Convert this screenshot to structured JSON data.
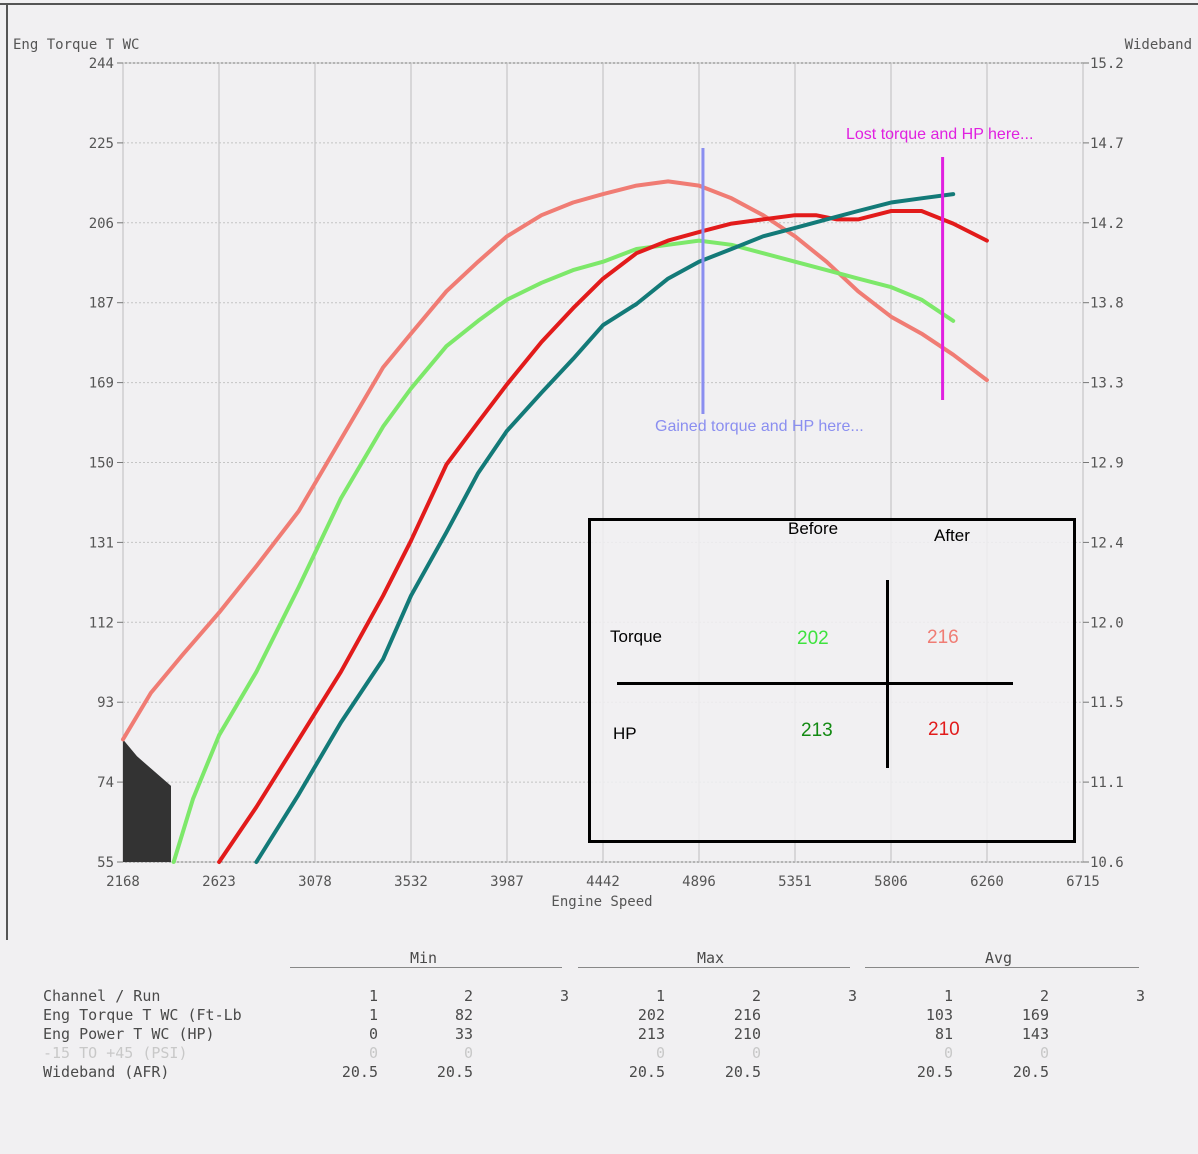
{
  "chart_data": {
    "type": "line",
    "title": "",
    "xlabel": "Engine Speed",
    "ylabel_left": "Eng Torque T WC",
    "ylabel_right": "Wideband",
    "xlim": [
      2168,
      6715
    ],
    "ylim_left": [
      55,
      244
    ],
    "ylim_right": [
      10.6,
      15.2
    ],
    "x_ticks": [
      "2168",
      "2623",
      "3078",
      "3532",
      "3987",
      "4442",
      "4896",
      "5351",
      "5806",
      "6260",
      "6715"
    ],
    "y_ticks_left": [
      "244",
      "225",
      "206",
      "187",
      "169",
      "150",
      "131",
      "112",
      "93",
      "74",
      "55"
    ],
    "y_ticks_right": [
      "15.2",
      "14.7",
      "14.2",
      "13.8",
      "13.3",
      "12.9",
      "12.4",
      "12.0",
      "11.5",
      "11.1",
      "10.6"
    ],
    "grid": true,
    "series": [
      {
        "color": "#f07c74",
        "x": [
          2168,
          2300,
          2450,
          2623,
          2800,
          3000,
          3200,
          3400,
          3532,
          3700,
          3850,
          3987,
          4150,
          4300,
          4442,
          4600,
          4750,
          4896,
          5050,
          5200,
          5351,
          5500,
          5650,
          5806,
          5950,
          6100,
          6260
        ],
        "y": [
          84,
          95,
          104,
          114,
          125,
          138,
          155,
          172,
          180,
          190,
          197,
          203,
          208,
          211,
          213,
          215,
          216,
          215,
          212,
          208,
          203,
          197,
          190,
          184,
          180,
          175,
          169
        ]
      },
      {
        "color": "#7de86a",
        "x": [
          2408,
          2500,
          2623,
          2800,
          3000,
          3200,
          3400,
          3532,
          3700,
          3850,
          3987,
          4150,
          4300,
          4442,
          4600,
          4750,
          4896,
          5050,
          5200,
          5351,
          5500,
          5650,
          5806,
          5950,
          6100
        ],
        "y": [
          55,
          70,
          85,
          100,
          120,
          141,
          158,
          167,
          177,
          183,
          188,
          192,
          195,
          197,
          200,
          201,
          202,
          201,
          199,
          197,
          195,
          193,
          191,
          188,
          183
        ]
      },
      {
        "color": "#e21b1b",
        "x": [
          2623,
          2800,
          3000,
          3200,
          3400,
          3532,
          3700,
          3850,
          3987,
          4150,
          4300,
          4442,
          4600,
          4750,
          4896,
          5050,
          5200,
          5351,
          5450,
          5550,
          5650,
          5806,
          5950,
          6100,
          6260
        ],
        "y": [
          55,
          68,
          84,
          100,
          118,
          131,
          149,
          159,
          168,
          178,
          186,
          193,
          199,
          202,
          204,
          206,
          207,
          208,
          208,
          207,
          207,
          209,
          209,
          206,
          202
        ]
      },
      {
        "color": "#137a78",
        "x": [
          2800,
          3000,
          3200,
          3400,
          3532,
          3700,
          3850,
          3987,
          4150,
          4300,
          4442,
          4600,
          4750,
          4896,
          5050,
          5200,
          5351,
          5500,
          5650,
          5806,
          5950,
          6100
        ],
        "y": [
          55,
          71,
          88,
          103,
          118,
          133,
          147,
          157,
          166,
          174,
          182,
          187,
          193,
          197,
          200,
          203,
          205,
          207,
          209,
          211,
          212,
          213
        ]
      }
    ],
    "annotations": [
      {
        "text": "Lost torque and HP here...",
        "color": "#e020e0",
        "x": 6050
      },
      {
        "text": "Gained torque and HP here...",
        "color": "#8a8ef0",
        "x": 4896
      }
    ]
  },
  "inset_table": {
    "col_before": "Before",
    "col_after": "After",
    "row_torque": "Torque",
    "row_hp": "HP",
    "torque_before": "202",
    "torque_after": "216",
    "hp_before": "213",
    "hp_after": "210",
    "colors": {
      "torque_before": "#3ee23e",
      "torque_after": "#f07c74",
      "hp_before": "#138a13",
      "hp_after": "#e21b1b"
    }
  },
  "summary": {
    "groups": [
      "Min",
      "Max",
      "Avg"
    ],
    "run_header": "Channel / Run",
    "runs": [
      "1",
      "2",
      "3"
    ],
    "rows": [
      {
        "label": "Eng Torque T WC (Ft-Lb",
        "min": [
          "1",
          "82"
        ],
        "max": [
          "202",
          "216"
        ],
        "avg": [
          "103",
          "169"
        ],
        "faint": false
      },
      {
        "label": "Eng Power T WC (HP)",
        "min": [
          "0",
          "33"
        ],
        "max": [
          "213",
          "210"
        ],
        "avg": [
          "81",
          "143"
        ],
        "faint": false
      },
      {
        "label": "-15 TO +45 (PSI)",
        "min": [
          "0",
          "0"
        ],
        "max": [
          "0",
          "0"
        ],
        "avg": [
          "0",
          "0"
        ],
        "faint": true
      },
      {
        "label": "Wideband (AFR)",
        "min": [
          "20.5",
          "20.5"
        ],
        "max": [
          "20.5",
          "20.5"
        ],
        "avg": [
          "20.5",
          "20.5"
        ],
        "faint": false
      }
    ]
  }
}
